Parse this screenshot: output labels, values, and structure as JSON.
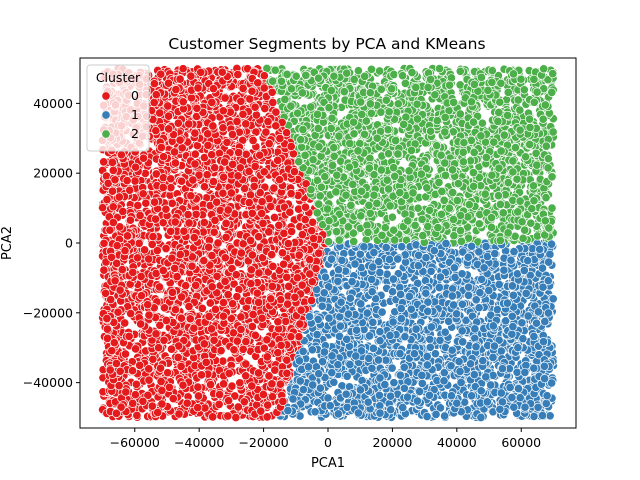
{
  "chart_data": {
    "type": "scatter",
    "title": "Customer Segments by PCA and KMeans",
    "xlabel": "PCA1",
    "ylabel": "PCA2",
    "xlim": [
      -77000,
      77000
    ],
    "ylim": [
      -53000,
      53000
    ],
    "xticks": [
      -60000,
      -40000,
      -20000,
      0,
      20000,
      40000,
      60000
    ],
    "yticks": [
      -40000,
      -20000,
      0,
      20000,
      40000
    ],
    "xtick_labels": [
      "−60000",
      "−40000",
      "−20000",
      "0",
      "20000",
      "40000",
      "60000"
    ],
    "ytick_labels": [
      "−40000",
      "−20000",
      "0",
      "20000",
      "40000"
    ],
    "grid": false,
    "legend": {
      "title": "Cluster",
      "placement": "top-left",
      "entries": [
        {
          "label": "0",
          "color": "#e41a1c"
        },
        {
          "label": "1",
          "color": "#377eb8"
        },
        {
          "label": "2",
          "color": "#4daf4a"
        }
      ]
    },
    "data_extent": {
      "x": [
        -70000,
        70000
      ],
      "y": [
        -50000,
        50000
      ]
    },
    "cluster_regions": [
      {
        "name": "0",
        "region": "x < boundary (left half), spanning y -50000 to 50000"
      },
      {
        "name": "1",
        "region": "x > boundary and y < 0 (bottom-right)"
      },
      {
        "name": "2",
        "region": "x > boundary and y > 0 (top-right)"
      }
    ],
    "boundary_points": {
      "top": [
        -20000,
        50000
      ],
      "center": [
        0,
        0
      ],
      "bottom": [
        -15000,
        -50000
      ]
    },
    "points_per_cluster_estimate": [
      4200,
      2600,
      2600
    ]
  }
}
